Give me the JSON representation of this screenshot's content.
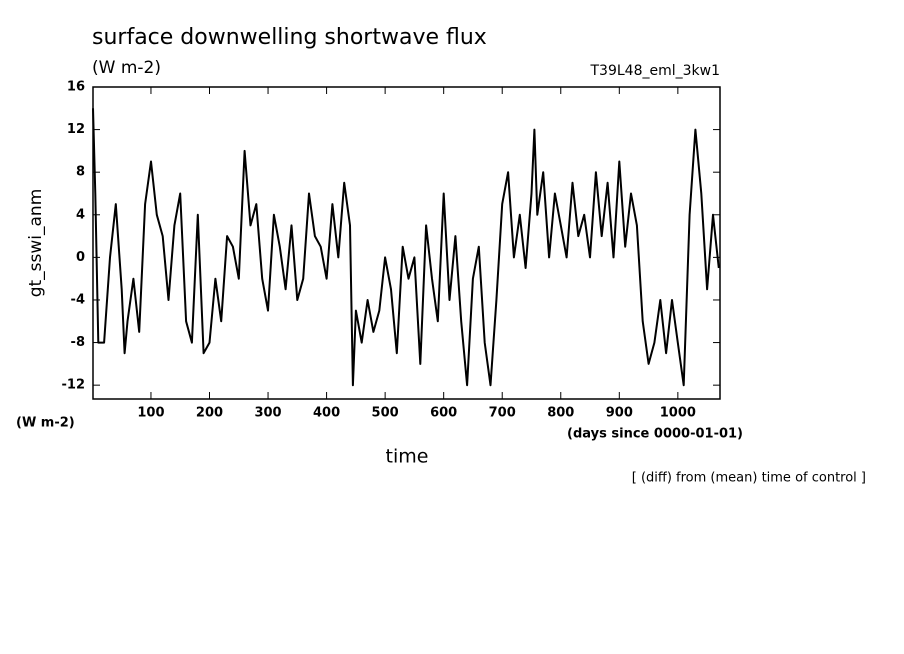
{
  "chart_data": {
    "type": "line",
    "title": "surface downwelling shortwave flux",
    "subtitle": "(W m-2)",
    "run_label": "T39L48_eml_3kw1",
    "y_label": "gt_sswi_anm",
    "y_unit": "(W m-2)",
    "x_unit": "(days since 0000-01-01)",
    "x_label": "time",
    "note": "[ (diff) from (mean) time of control ]",
    "xlim": [
      1,
      1072
    ],
    "ylim": [
      -13.3,
      16
    ],
    "xticks": [
      100,
      200,
      300,
      400,
      500,
      600,
      700,
      800,
      900,
      1000
    ],
    "yticks": [
      -12,
      -8,
      -4,
      0,
      4,
      8,
      12,
      16
    ],
    "color": "#000000",
    "x": [
      1,
      5,
      10,
      20,
      30,
      40,
      50,
      55,
      60,
      70,
      80,
      90,
      100,
      110,
      120,
      130,
      140,
      150,
      160,
      170,
      180,
      190,
      200,
      210,
      220,
      230,
      240,
      250,
      260,
      270,
      280,
      290,
      300,
      310,
      320,
      330,
      340,
      350,
      360,
      370,
      380,
      390,
      400,
      410,
      420,
      430,
      440,
      445,
      450,
      460,
      470,
      480,
      490,
      500,
      510,
      520,
      530,
      540,
      550,
      560,
      570,
      580,
      590,
      600,
      610,
      620,
      630,
      640,
      650,
      660,
      670,
      680,
      690,
      700,
      710,
      720,
      730,
      740,
      750,
      755,
      760,
      770,
      780,
      790,
      800,
      810,
      820,
      830,
      840,
      850,
      860,
      870,
      880,
      890,
      900,
      910,
      920,
      930,
      940,
      950,
      960,
      970,
      980,
      990,
      1000,
      1010,
      1020,
      1030,
      1040,
      1050,
      1060,
      1070
    ],
    "values": [
      14,
      6,
      -8,
      -8,
      0,
      5,
      -3,
      -9,
      -6,
      -2,
      -7,
      5,
      9,
      4,
      2,
      -4,
      3,
      6,
      -6,
      -8,
      4,
      -9,
      -8,
      -2,
      -6,
      2,
      1,
      -2,
      10,
      3,
      5,
      -2,
      -5,
      4,
      1,
      -3,
      3,
      -4,
      -2,
      6,
      2,
      1,
      -2,
      5,
      0,
      7,
      3,
      -12,
      -5,
      -8,
      -4,
      -7,
      -5,
      0,
      -3,
      -9,
      1,
      -2,
      0,
      -10,
      3,
      -2,
      -6,
      6,
      -4,
      2,
      -6,
      -12,
      -2,
      1,
      -8,
      -12,
      -4,
      5,
      8,
      0,
      4,
      -1,
      6,
      12,
      4,
      8,
      0,
      6,
      3,
      0,
      7,
      2,
      4,
      0,
      8,
      2,
      7,
      0,
      9,
      1,
      6,
      3,
      -6,
      -10,
      -8,
      -4,
      -9,
      -4,
      -8,
      -12,
      4,
      12,
      6,
      -3,
      4,
      -1
    ]
  }
}
